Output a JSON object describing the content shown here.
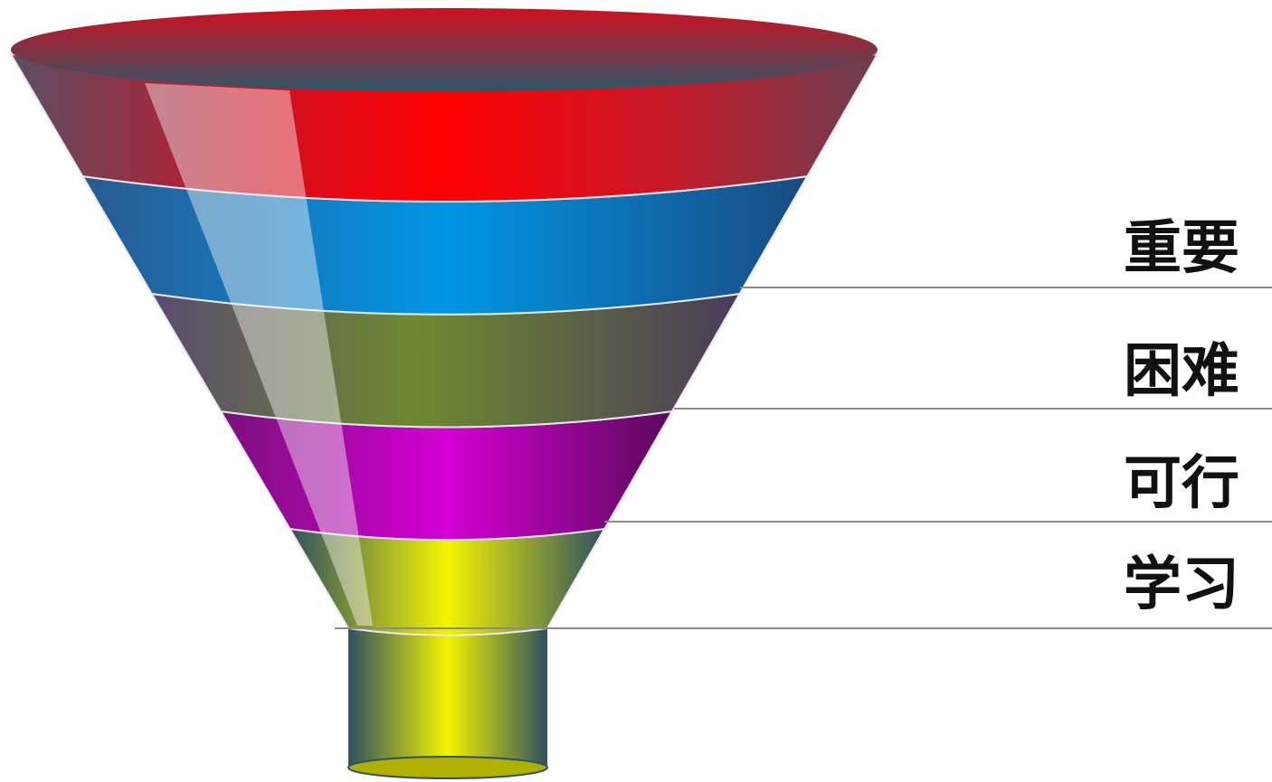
{
  "labels": [
    "重要",
    "困难",
    "可行",
    "学习"
  ]
}
